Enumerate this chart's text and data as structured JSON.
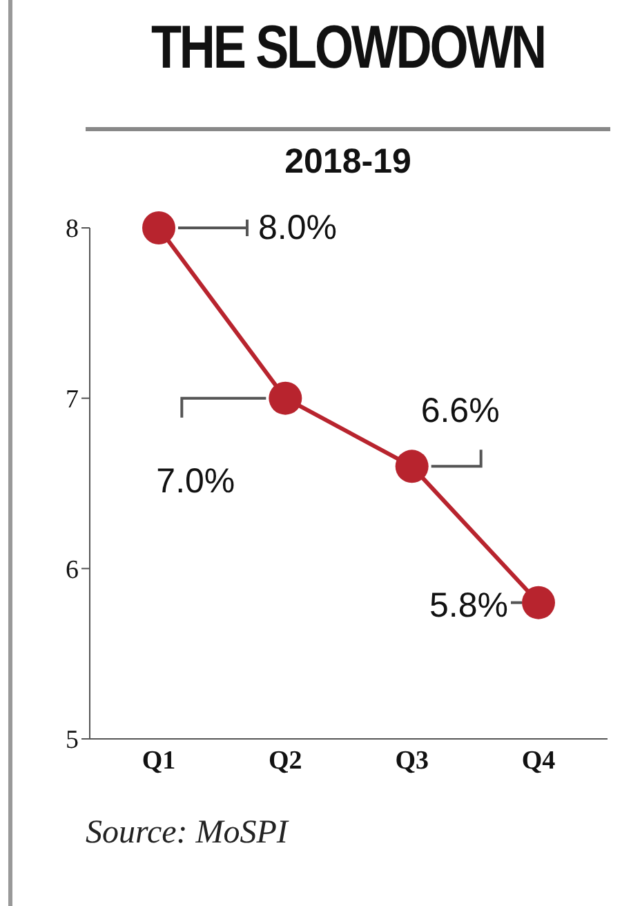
{
  "chart_data": {
    "type": "line",
    "title": "THE SLOWDOWN",
    "subtitle": "2018-19",
    "categories": [
      "Q1",
      "Q2",
      "Q3",
      "Q4"
    ],
    "series": [
      {
        "color": "#b8242e",
        "values": [
          8.0,
          7.0,
          6.6,
          5.8
        ],
        "value_labels": [
          "8.0%",
          "7.0%",
          "6.6%",
          "5.8%"
        ]
      }
    ],
    "ylim": [
      5,
      8
    ],
    "yticks": [
      5,
      6,
      7,
      8
    ],
    "grid": false,
    "legend": false,
    "marker": "circle",
    "line_style": "solid",
    "annotations": [
      "Source: MoSPI"
    ]
  }
}
